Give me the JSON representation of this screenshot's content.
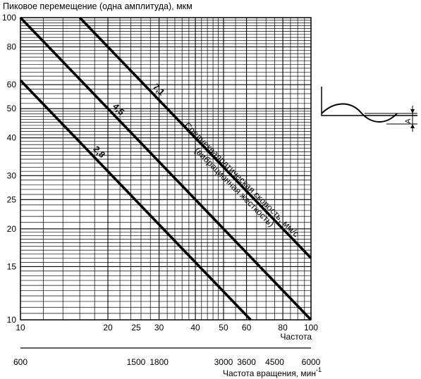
{
  "chart_data": {
    "type": "line",
    "title": "",
    "ylabel": "Пиковое перемещение (одна амплитуда), мкм",
    "xlabel": "Частота",
    "x2label": "Частота вращения, мин",
    "x2label_sup": "-1",
    "x_scale": "log",
    "y_scale": "log",
    "xlim": [
      10,
      100
    ],
    "ylim": [
      10,
      100
    ],
    "grid": true,
    "x_ticks": [
      10,
      20,
      25,
      30,
      40,
      50,
      60,
      80,
      100
    ],
    "y_ticks": [
      10,
      15,
      20,
      25,
      30,
      40,
      50,
      60,
      80,
      100
    ],
    "x2_ticks": [
      {
        "label": "600",
        "at_x": 10
      },
      {
        "label": "1500",
        "at_x": 25
      },
      {
        "label": "1800",
        "at_x": 30
      },
      {
        "label": "3000",
        "at_x": 50
      },
      {
        "label": "3600",
        "at_x": 60
      },
      {
        "label": "4500",
        "at_x": 75
      },
      {
        "label": "6000",
        "at_x": 100
      }
    ],
    "series": [
      {
        "name": "2,8",
        "points": [
          [
            10,
            62
          ],
          [
            62,
            10
          ]
        ]
      },
      {
        "name": "4,5",
        "points": [
          [
            10,
            100
          ],
          [
            100,
            10
          ]
        ]
      },
      {
        "name": "7,1",
        "points": [
          [
            16,
            100
          ],
          [
            100,
            16
          ]
        ]
      }
    ],
    "annotation": "Среднеквадратическая скорость, мм/с\n(вибрационная жесткость)",
    "inset_label": "A"
  }
}
